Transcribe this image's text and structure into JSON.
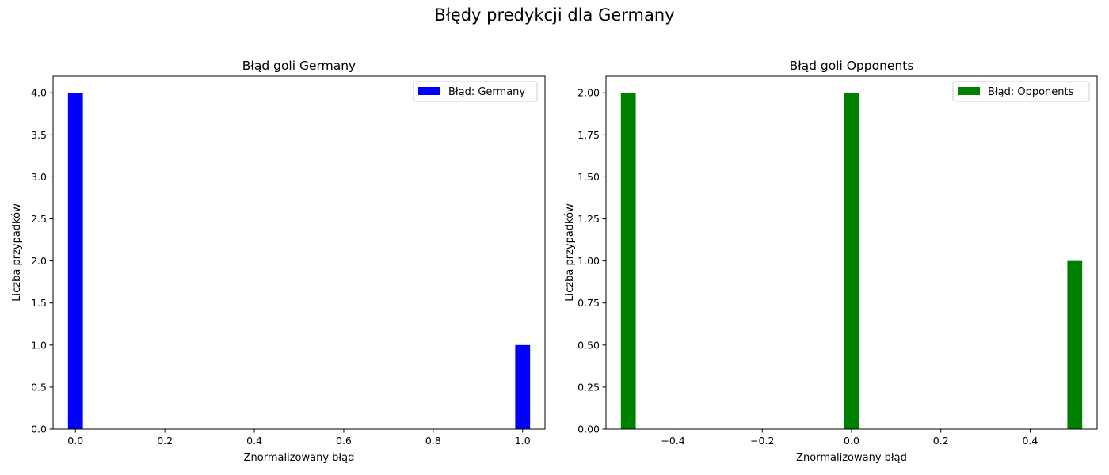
{
  "figure": {
    "title": "Błędy predykcji dla Germany"
  },
  "chart_data": [
    {
      "type": "bar",
      "title": "Błąd goli Germany",
      "xlabel": "Znormalizowany błąd",
      "ylabel": "Liczba przypadków",
      "xlim": [
        -0.05,
        1.05
      ],
      "ylim": [
        0,
        4.2
      ],
      "x_ticks": [
        0.0,
        0.2,
        0.4,
        0.6,
        0.8,
        1.0
      ],
      "x_tick_labels": [
        "0.0",
        "0.2",
        "0.4",
        "0.6",
        "0.8",
        "1.0"
      ],
      "y_ticks": [
        0.0,
        0.5,
        1.0,
        1.5,
        2.0,
        2.5,
        3.0,
        3.5,
        4.0
      ],
      "y_tick_labels": [
        "0.0",
        "0.5",
        "1.0",
        "1.5",
        "2.0",
        "2.5",
        "3.0",
        "3.5",
        "4.0"
      ],
      "bar_width": 0.0333,
      "legend_position": "upper right",
      "grid": false,
      "series": [
        {
          "name": "Błąd: Germany",
          "color": "#0000ff",
          "bars": [
            {
              "x": 0.0,
              "value": 4
            },
            {
              "x": 1.0,
              "value": 1
            }
          ]
        }
      ]
    },
    {
      "type": "bar",
      "title": "Błąd goli Opponents",
      "xlabel": "Znormalizowany błąd",
      "ylabel": "Liczba przypadków",
      "xlim": [
        -0.55,
        0.55
      ],
      "ylim": [
        0,
        2.1
      ],
      "x_ticks": [
        -0.4,
        -0.2,
        0.0,
        0.2,
        0.4
      ],
      "x_tick_labels": [
        "−0.4",
        "−0.2",
        "0.0",
        "0.2",
        "0.4"
      ],
      "y_ticks": [
        0.0,
        0.25,
        0.5,
        0.75,
        1.0,
        1.25,
        1.5,
        1.75,
        2.0
      ],
      "y_tick_labels": [
        "0.00",
        "0.25",
        "0.50",
        "0.75",
        "1.00",
        "1.25",
        "1.50",
        "1.75",
        "2.00"
      ],
      "bar_width": 0.0333,
      "legend_position": "upper right",
      "grid": false,
      "series": [
        {
          "name": "Błąd: Opponents",
          "color": "#008000",
          "bars": [
            {
              "x": -0.5,
              "value": 2
            },
            {
              "x": 0.0,
              "value": 2
            },
            {
              "x": 0.5,
              "value": 1
            }
          ]
        }
      ]
    }
  ]
}
